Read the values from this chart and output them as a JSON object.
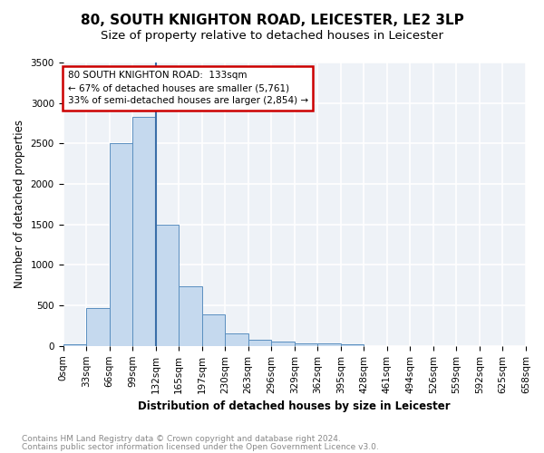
{
  "title": "80, SOUTH KNIGHTON ROAD, LEICESTER, LE2 3LP",
  "subtitle": "Size of property relative to detached houses in Leicester",
  "xlabel": "Distribution of detached houses by size in Leicester",
  "ylabel": "Number of detached properties",
  "bin_labels": [
    "0sqm",
    "33sqm",
    "66sqm",
    "99sqm",
    "132sqm",
    "165sqm",
    "197sqm",
    "230sqm",
    "263sqm",
    "296sqm",
    "329sqm",
    "362sqm",
    "395sqm",
    "428sqm",
    "461sqm",
    "494sqm",
    "526sqm",
    "559sqm",
    "592sqm",
    "625sqm",
    "658sqm"
  ],
  "bar_values": [
    20,
    470,
    2500,
    2830,
    1500,
    740,
    390,
    150,
    80,
    55,
    35,
    30,
    20,
    0,
    0,
    0,
    0,
    0,
    0,
    0
  ],
  "bar_color": "#c5d9ee",
  "bar_edge_color": "#5a8fc0",
  "vline_color": "#3a6ea8",
  "annotation_line1": "80 SOUTH KNIGHTON ROAD:  133sqm",
  "annotation_line2": "← 67% of detached houses are smaller (5,761)",
  "annotation_line3": "33% of semi-detached houses are larger (2,854) →",
  "annotation_box_color": "#ffffff",
  "annotation_box_edge_color": "#cc0000",
  "ylim": [
    0,
    3500
  ],
  "yticks": [
    0,
    500,
    1000,
    1500,
    2000,
    2500,
    3000,
    3500
  ],
  "bg_color": "#eef2f7",
  "grid_color": "#ffffff",
  "footer_line1": "Contains HM Land Registry data © Crown copyright and database right 2024.",
  "footer_line2": "Contains public sector information licensed under the Open Government Licence v3.0.",
  "title_fontsize": 11,
  "subtitle_fontsize": 9.5,
  "axis_label_fontsize": 8.5,
  "tick_fontsize": 7.5,
  "footer_fontsize": 6.5
}
